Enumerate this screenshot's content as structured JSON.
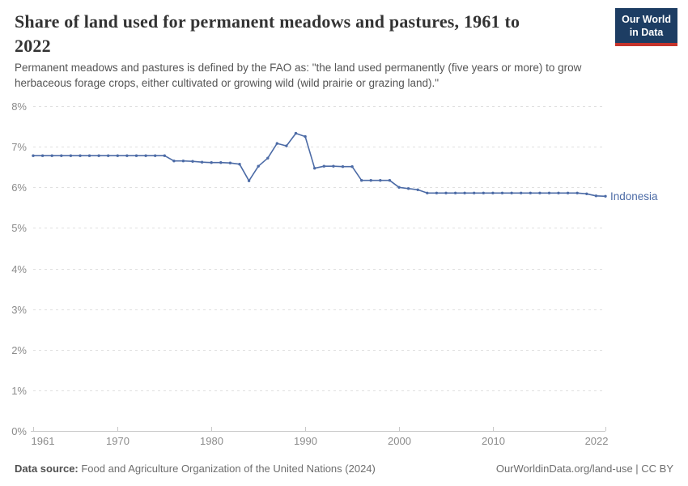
{
  "header": {
    "title_lines": [
      "Share of land used for permanent meadows and pastures, 1961 to",
      "2022"
    ],
    "subtitle_lines": [
      "Permanent meadows and pastures is defined by the FAO as: \"the land used permanently (five years or more) to grow",
      "herbaceous forage crops, either cultivated or growing wild (wild prairie or grazing land).\""
    ],
    "logo": {
      "line1": "Our World",
      "line2": "in Data",
      "bg": "#1d3d63",
      "bar": "#c5342c"
    }
  },
  "chart_data": {
    "type": "line",
    "title": "Share of land used for permanent meadows and pastures, 1961 to 2022",
    "entity": "Indonesia",
    "xlabel": "",
    "ylabel": "",
    "xlim": [
      1961,
      2022
    ],
    "ylim": [
      0,
      8
    ],
    "yticks": [
      0,
      1,
      2,
      3,
      4,
      5,
      6,
      7,
      8
    ],
    "ytick_suffix": "%",
    "xticks": [
      1961,
      1970,
      1980,
      1990,
      2000,
      2010,
      2022
    ],
    "grid": "horizontal-dashed",
    "legend_position": "end-of-line",
    "x": [
      1961,
      1962,
      1963,
      1964,
      1965,
      1966,
      1967,
      1968,
      1969,
      1970,
      1971,
      1972,
      1973,
      1974,
      1975,
      1976,
      1977,
      1978,
      1979,
      1980,
      1981,
      1982,
      1983,
      1984,
      1985,
      1986,
      1987,
      1988,
      1989,
      1990,
      1991,
      1992,
      1993,
      1994,
      1995,
      1996,
      1997,
      1998,
      1999,
      2000,
      2001,
      2002,
      2003,
      2004,
      2005,
      2006,
      2007,
      2008,
      2009,
      2010,
      2011,
      2012,
      2013,
      2014,
      2015,
      2016,
      2017,
      2018,
      2019,
      2020,
      2021,
      2022
    ],
    "series": [
      {
        "name": "Indonesia",
        "color": "#4c6ba6",
        "values": [
          6.78,
          6.78,
          6.78,
          6.78,
          6.78,
          6.78,
          6.78,
          6.78,
          6.78,
          6.78,
          6.78,
          6.78,
          6.78,
          6.78,
          6.78,
          6.65,
          6.65,
          6.64,
          6.62,
          6.61,
          6.61,
          6.6,
          6.57,
          6.16,
          6.52,
          6.72,
          7.08,
          7.02,
          7.33,
          7.25,
          6.47,
          6.52,
          6.52,
          6.51,
          6.51,
          6.17,
          6.17,
          6.17,
          6.17,
          6.0,
          5.97,
          5.94,
          5.86,
          5.86,
          5.86,
          5.86,
          5.86,
          5.86,
          5.86,
          5.86,
          5.86,
          5.86,
          5.86,
          5.86,
          5.86,
          5.86,
          5.86,
          5.86,
          5.86,
          5.84,
          5.79,
          5.78
        ]
      }
    ]
  },
  "footer": {
    "source_label": "Data source:",
    "source_text": " Food and Agriculture Organization of the United Nations (2024)",
    "link_text": "OurWorldinData.org/land-use | CC BY"
  }
}
